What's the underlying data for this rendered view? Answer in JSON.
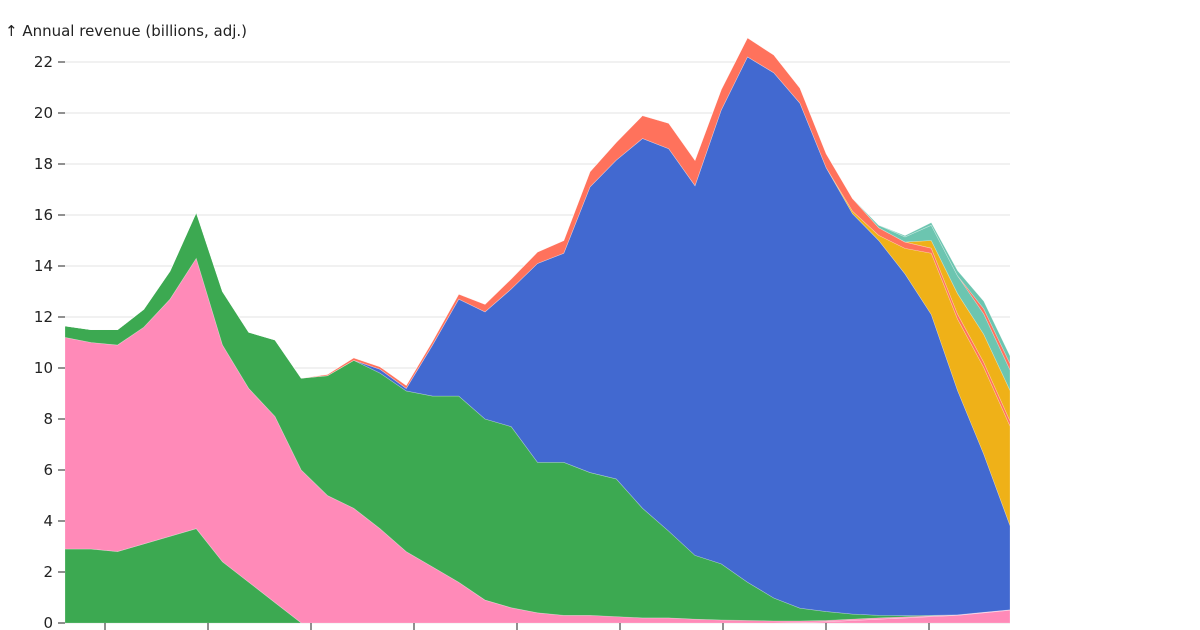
{
  "chart_data": {
    "type": "area",
    "stacked": true,
    "ylabel": "↑ Annual revenue (billions, adj.)",
    "ylim": [
      0,
      22
    ],
    "yticks": [
      0,
      2,
      4,
      6,
      8,
      10,
      12,
      14,
      16,
      18,
      20,
      22
    ],
    "xticks_labeled": false,
    "grid": "horizontal",
    "x_count": 37,
    "series": [
      {
        "color": "#ff8ab8",
        "values": [
          0,
          0,
          0,
          0,
          0,
          0,
          0,
          0,
          0,
          0,
          0,
          0,
          0,
          0,
          0,
          0,
          0,
          0,
          0,
          0,
          0,
          0,
          0,
          0,
          0,
          0,
          0,
          0,
          0.02,
          0.05,
          0.1,
          0.15,
          0.2,
          0.25,
          0.3,
          0.4,
          0.5
        ]
      },
      {
        "color": "#3ca951",
        "values": [
          2.9,
          2.9,
          2.8,
          3.1,
          3.4,
          3.7,
          2.4,
          1.6,
          0.8,
          0.0,
          0,
          0,
          0,
          0,
          0,
          0,
          0,
          0,
          0,
          0,
          0,
          0,
          0,
          0,
          0,
          0,
          0,
          0,
          0,
          0,
          0,
          0,
          0,
          0,
          0,
          0,
          0
        ]
      },
      {
        "color": "#ff8ab8",
        "values": [
          8.3,
          8.1,
          8.1,
          8.5,
          9.3,
          10.6,
          8.5,
          7.6,
          7.3,
          6.0,
          5.0,
          4.5,
          3.7,
          2.8,
          2.2,
          1.6,
          0.9,
          0.6,
          0.4,
          0.3,
          0.3,
          0.25,
          0.2,
          0.2,
          0.15,
          0.12,
          0.1,
          0.08,
          0.06,
          0.05,
          0.05,
          0.05,
          0.04,
          0.03,
          0.02,
          0.02,
          0.02
        ]
      },
      {
        "color": "#3ca951",
        "values": [
          0.45,
          0.5,
          0.6,
          0.7,
          1.1,
          1.8,
          2.1,
          2.2,
          3.0,
          3.6,
          4.7,
          5.8,
          6.1,
          6.3,
          6.7,
          7.3,
          7.1,
          7.1,
          5.9,
          6.0,
          5.6,
          5.4,
          4.3,
          3.4,
          2.5,
          2.2,
          1.5,
          0.9,
          0.5,
          0.35,
          0.2,
          0.1,
          0.05,
          0.02,
          0,
          0,
          0
        ]
      },
      {
        "color": "#4269d0",
        "values": [
          0,
          0,
          0,
          0,
          0,
          0,
          0,
          0,
          0,
          0,
          0,
          0,
          0.15,
          0.1,
          2.0,
          3.8,
          4.2,
          5.4,
          7.8,
          8.2,
          11.2,
          12.5,
          14.5,
          15.0,
          14.5,
          17.8,
          20.6,
          20.6,
          19.8,
          17.4,
          15.7,
          14.7,
          13.4,
          11.8,
          8.8,
          6.2,
          3.3
        ]
      },
      {
        "color": "#efb118",
        "values": [
          0,
          0,
          0,
          0,
          0,
          0,
          0,
          0,
          0,
          0,
          0,
          0,
          0,
          0,
          0,
          0,
          0,
          0,
          0,
          0,
          0,
          0,
          0,
          0,
          0,
          0,
          0,
          0,
          0,
          0,
          0.1,
          0.2,
          0.25,
          0.25,
          0.3,
          0.3,
          0.3
        ]
      },
      {
        "color": "#ff725c",
        "values": [
          0,
          0,
          0,
          0,
          0,
          0,
          0,
          0,
          0,
          0,
          0,
          0,
          0,
          0,
          0,
          0,
          0,
          0,
          0,
          0,
          0,
          0,
          0,
          0,
          0,
          0,
          0,
          0,
          0,
          0,
          0,
          0,
          0,
          0,
          0.1,
          0.1,
          0.1
        ]
      },
      {
        "color": "#efb118",
        "values": [
          0,
          0,
          0,
          0,
          0,
          0,
          0,
          0,
          0,
          0,
          0,
          0,
          0,
          0,
          0,
          0,
          0,
          0,
          0,
          0,
          0,
          0,
          0,
          0,
          0,
          0,
          0,
          0,
          0,
          0,
          0,
          0,
          0,
          0,
          0,
          0,
          0
        ]
      },
      {
        "color": "#6cc5b0",
        "values": [
          0,
          0,
          0,
          0,
          0,
          0,
          0,
          0,
          0,
          0,
          0,
          0,
          0,
          0,
          0,
          0,
          0,
          0,
          0,
          0,
          0,
          0,
          0,
          0,
          0,
          0,
          0,
          0,
          0,
          0,
          0,
          0,
          0,
          0,
          0,
          0,
          0
        ]
      },
      {
        "color": "#ff725c",
        "values": [
          0,
          0,
          0,
          0,
          0,
          0,
          0,
          0,
          0,
          0,
          0,
          0,
          0,
          0,
          0,
          0,
          0,
          0,
          0,
          0,
          0,
          0,
          0,
          0,
          0,
          0,
          0,
          0,
          0,
          0,
          0,
          0,
          0,
          0,
          0,
          0,
          0
        ]
      },
      {
        "color": "#6cc5b0",
        "values": [
          0,
          0,
          0,
          0,
          0,
          0,
          0,
          0,
          0,
          0,
          0,
          0,
          0,
          0,
          0,
          0,
          0,
          0,
          0,
          0,
          0,
          0,
          0,
          0,
          0,
          0,
          0,
          0,
          0,
          0,
          0,
          0,
          0,
          0,
          0,
          0,
          0
        ]
      }
    ],
    "series_overrides": {
      "5": [
        0,
        0,
        0,
        0,
        0,
        0,
        0,
        0,
        0,
        0,
        0,
        0,
        0,
        0,
        0,
        0,
        0,
        0,
        0,
        0,
        0,
        0,
        0,
        0,
        0,
        0,
        0,
        0,
        0,
        0,
        0.1,
        0.2,
        1.0,
        2.4,
        2.8,
        3.4,
        3.9
      ],
      "6": [
        0,
        0,
        0,
        0,
        0,
        0,
        0,
        0,
        0,
        0,
        0.05,
        0.1,
        0.1,
        0.12,
        0.15,
        0.2,
        0.3,
        0.4,
        0.45,
        0.5,
        0.6,
        0.7,
        0.9,
        1.0,
        1.0,
        0.8,
        0.75,
        0.7,
        0.6,
        0.55,
        0.5,
        0.3,
        0.25,
        0.2,
        0.2,
        0.2,
        0.2
      ],
      "7": [
        0,
        0,
        0,
        0,
        0,
        0,
        0,
        0,
        0,
        0,
        0,
        0,
        0,
        0,
        0,
        0,
        0,
        0,
        0,
        0,
        0,
        0,
        0,
        0,
        0,
        0,
        0,
        0,
        0,
        0,
        0,
        0,
        0,
        0.3,
        0.8,
        1.1,
        1.2
      ],
      "8": [
        0,
        0,
        0,
        0,
        0,
        0,
        0,
        0,
        0,
        0,
        0,
        0,
        0,
        0,
        0,
        0,
        0,
        0,
        0,
        0,
        0,
        0,
        0,
        0,
        0,
        0,
        0,
        0,
        0,
        0,
        0,
        0.1,
        0.2,
        0.6,
        0.7,
        0.8,
        0.8
      ],
      "9": [
        0,
        0,
        0,
        0,
        0,
        0,
        0,
        0,
        0,
        0,
        0,
        0,
        0,
        0,
        0,
        0,
        0,
        0,
        0,
        0,
        0,
        0,
        0,
        0,
        0,
        0,
        0,
        0,
        0,
        0,
        0,
        0,
        0,
        0,
        0,
        0.2,
        0.25
      ],
      "10": [
        0,
        0,
        0,
        0,
        0,
        0,
        0,
        0,
        0,
        0,
        0,
        0,
        0,
        0,
        0,
        0,
        0,
        0,
        0,
        0,
        0,
        0,
        0,
        0,
        0,
        0,
        0,
        0,
        0,
        0,
        0,
        0,
        0.05,
        0.1,
        0.2,
        0.3,
        0.3
      ]
    }
  }
}
